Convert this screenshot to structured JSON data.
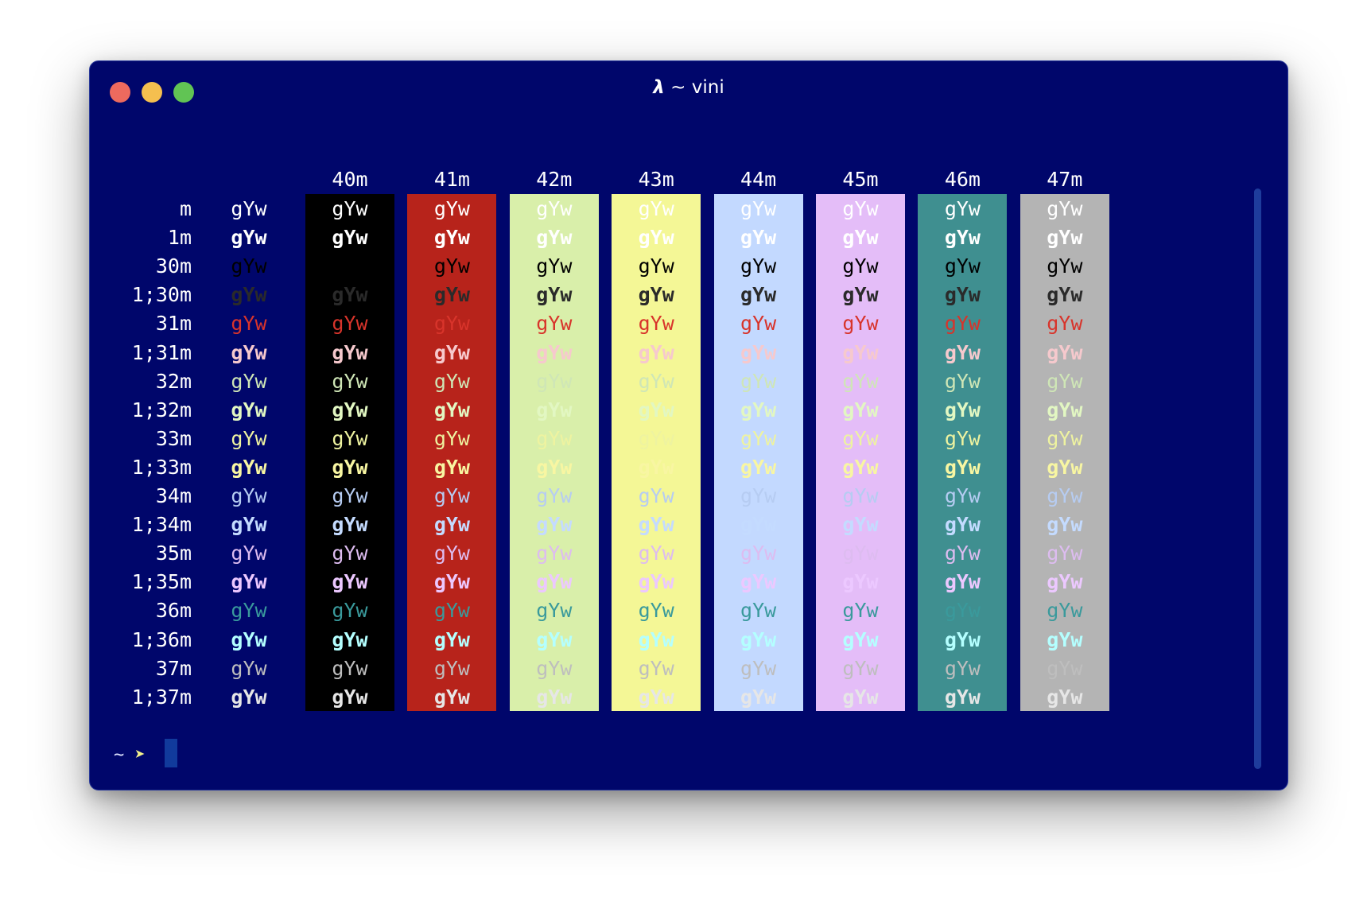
{
  "window": {
    "title_symbol": "λ",
    "title_text": "~ vini",
    "colors": {
      "background": "#00066b",
      "close": "#ed6a5e",
      "minimize": "#f5bf4f",
      "maximize": "#61c454"
    }
  },
  "table": {
    "sample_text": "gYw",
    "column_headers": [
      "40m",
      "41m",
      "42m",
      "43m",
      "44m",
      "45m",
      "46m",
      "47m"
    ],
    "row_labels": [
      "m",
      "1m",
      "30m",
      "1;30m",
      "31m",
      "1;31m",
      "32m",
      "1;32m",
      "33m",
      "1;33m",
      "34m",
      "1;34m",
      "35m",
      "1;35m",
      "36m",
      "1;36m",
      "37m",
      "1;37m"
    ],
    "default_background": "#00066b",
    "background_colors": [
      "#000000",
      "#b7231b",
      "#d9efaa",
      "#f4f796",
      "#c3d9ff",
      "#e4bdf8",
      "#3f8f90",
      "#b4b4b4"
    ],
    "foreground_colors": [
      "#ffffff",
      "#ffffff",
      "#000000",
      "#2a2a2a",
      "#d8342b",
      "#f6c9cd",
      "#cfe6b6",
      "#e2f7c2",
      "#eef3a0",
      "#f8f6a2",
      "#b6ccf2",
      "#c4dbff",
      "#ddbcf0",
      "#ecc8ff",
      "#3a9a9c",
      "#b4ffff",
      "#bebebe",
      "#e6e6e6"
    ]
  },
  "prompt": {
    "tilde": "~",
    "arrow": "➤"
  }
}
